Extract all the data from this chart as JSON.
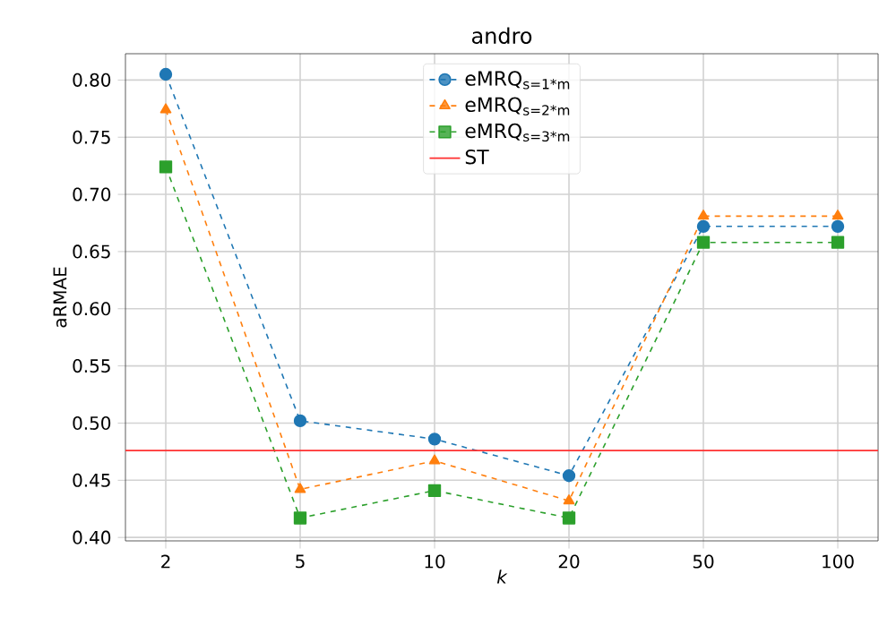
{
  "chart_data": {
    "type": "line",
    "title": "andro",
    "xlabel": "k",
    "ylabel": "aRMAE",
    "categories": [
      "2",
      "5",
      "10",
      "20",
      "50",
      "100"
    ],
    "series": [
      {
        "name": "eMRQ$_{s=1*m}$",
        "color": "#1f77b4",
        "marker": "circle",
        "line_style": "dashed",
        "values": [
          0.805,
          0.502,
          0.486,
          0.454,
          0.672,
          0.672
        ]
      },
      {
        "name": "eMRQ$_{s=2*m}$",
        "color": "#ff7f0e",
        "marker": "triangle",
        "line_style": "dashed",
        "values": [
          0.774,
          0.442,
          0.467,
          0.432,
          0.681,
          0.681
        ]
      },
      {
        "name": "eMRQ$_{s=3*m}$",
        "color": "#2ca02c",
        "marker": "square",
        "line_style": "dashed",
        "values": [
          0.724,
          0.417,
          0.441,
          0.417,
          0.658,
          0.658
        ]
      }
    ],
    "ref_lines": [
      {
        "axis": "y",
        "value": 0.476,
        "label": "ST",
        "color": "#ff3030",
        "line_style": "solid"
      }
    ],
    "ylim": [
      0.397,
      0.823
    ],
    "yticks": [
      {
        "value": 0.4,
        "label": "0.40"
      },
      {
        "value": 0.45,
        "label": "0.45"
      },
      {
        "value": 0.5,
        "label": "0.50"
      },
      {
        "value": 0.55,
        "label": "0.55"
      },
      {
        "value": 0.6,
        "label": "0.60"
      },
      {
        "value": 0.65,
        "label": "0.65"
      },
      {
        "value": 0.7,
        "label": "0.70"
      },
      {
        "value": 0.75,
        "label": "0.75"
      },
      {
        "value": 0.8,
        "label": "0.80"
      }
    ],
    "grid": true,
    "legend": "top"
  }
}
